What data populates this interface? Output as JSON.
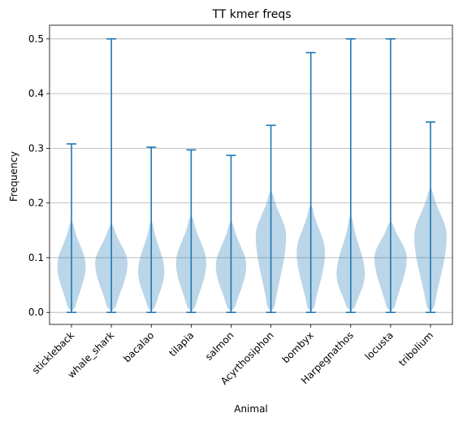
{
  "chart_data": {
    "type": "violin",
    "title": "TT kmer freqs",
    "xlabel": "Animal",
    "ylabel": "Frequency",
    "ylim": [
      -0.022,
      0.525
    ],
    "yticks": [
      0.0,
      0.1,
      0.2,
      0.3,
      0.4,
      0.5
    ],
    "ytick_labels": [
      "0.0",
      "0.1",
      "0.2",
      "0.3",
      "0.4",
      "0.5"
    ],
    "grid": "y-major",
    "categories": [
      "stickleback",
      "whale_shark",
      "bacalao",
      "tilapia",
      "salmon",
      "Acyrthosiphon",
      "bombyx",
      "Harpegnathos",
      "locusta",
      "tribolium"
    ],
    "colors": {
      "line": "#1f77b4",
      "body": "#1f77b4",
      "grid": "#b0b0b0"
    },
    "series": [
      {
        "category": "stickleback",
        "min": 0.0,
        "max": 0.308,
        "density_top": 0.17,
        "mode": 0.085,
        "peak_width": 0.14
      },
      {
        "category": "whale_shark",
        "min": 0.0,
        "max": 0.5,
        "density_top": 0.165,
        "mode": 0.09,
        "peak_width": 0.16
      },
      {
        "category": "bacalao",
        "min": 0.0,
        "max": 0.302,
        "density_top": 0.17,
        "mode": 0.075,
        "peak_width": 0.13
      },
      {
        "category": "tilapia",
        "min": 0.0,
        "max": 0.297,
        "density_top": 0.18,
        "mode": 0.09,
        "peak_width": 0.15
      },
      {
        "category": "salmon",
        "min": 0.0,
        "max": 0.287,
        "density_top": 0.17,
        "mode": 0.085,
        "peak_width": 0.15
      },
      {
        "category": "Acyrthosiphon",
        "min": 0.0,
        "max": 0.342,
        "density_top": 0.225,
        "mode": 0.14,
        "peak_width": 0.15
      },
      {
        "category": "bombyx",
        "min": 0.0,
        "max": 0.475,
        "density_top": 0.2,
        "mode": 0.11,
        "peak_width": 0.14
      },
      {
        "category": "Harpegnathos",
        "min": 0.0,
        "max": 0.5,
        "density_top": 0.18,
        "mode": 0.07,
        "peak_width": 0.14
      },
      {
        "category": "locusta",
        "min": 0.0,
        "max": 0.5,
        "density_top": 0.17,
        "mode": 0.1,
        "peak_width": 0.16
      },
      {
        "category": "tribolium",
        "min": 0.0,
        "max": 0.348,
        "density_top": 0.23,
        "mode": 0.14,
        "peak_width": 0.16
      }
    ]
  }
}
